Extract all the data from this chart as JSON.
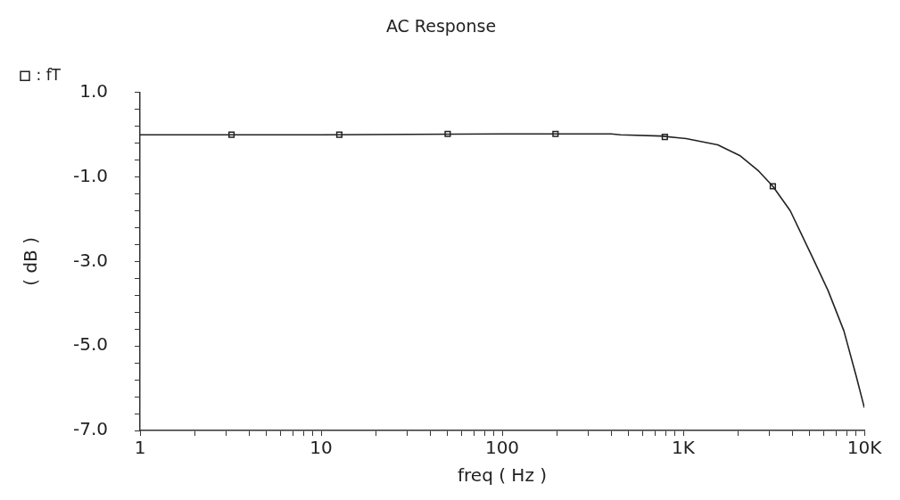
{
  "chart_data": {
    "type": "line",
    "title": "AC Response",
    "xlabel": "freq ( Hz )",
    "ylabel": "( dB )",
    "log": "x",
    "xlim": [
      1,
      10000
    ],
    "ylim": [
      -7,
      1
    ],
    "xticks": [
      1,
      {
        "value": 2,
        "label": null
      },
      {
        "value": 3,
        "label": null
      },
      {
        "value": 4,
        "label": null
      },
      {
        "value": 5,
        "label": null
      },
      {
        "value": 6,
        "label": null
      },
      {
        "value": 7,
        "label": null
      },
      {
        "value": 8,
        "label": null
      },
      {
        "value": 9,
        "label": null
      },
      10,
      {
        "value": 20,
        "label": null
      },
      {
        "value": 30,
        "label": null
      },
      {
        "value": 40,
        "label": null
      },
      {
        "value": 50,
        "label": null
      },
      {
        "value": 60,
        "label": null
      },
      {
        "value": 70,
        "label": null
      },
      {
        "value": 80,
        "label": null
      },
      {
        "value": 90,
        "label": null
      },
      100,
      {
        "value": 200,
        "label": null
      },
      {
        "value": 300,
        "label": null
      },
      {
        "value": 400,
        "label": null
      },
      {
        "value": 500,
        "label": null
      },
      {
        "value": 600,
        "label": null
      },
      {
        "value": 700,
        "label": null
      },
      {
        "value": 800,
        "label": null
      },
      {
        "value": 900,
        "label": null
      },
      {
        "value": 1000,
        "label": "1K"
      },
      {
        "value": 2000,
        "label": null
      },
      {
        "value": 3000,
        "label": null
      },
      {
        "value": 4000,
        "label": null
      },
      {
        "value": 5000,
        "label": null
      },
      {
        "value": 6000,
        "label": null
      },
      {
        "value": 7000,
        "label": null
      },
      {
        "value": 8000,
        "label": null
      },
      {
        "value": 9000,
        "label": null
      },
      {
        "value": 10000,
        "label": "10K"
      }
    ],
    "yticks": [
      {
        "value": 1,
        "label": "1.0"
      },
      {
        "value": 0.6,
        "label": null
      },
      {
        "value": 0.2,
        "label": null
      },
      {
        "value": -0.2,
        "label": null
      },
      {
        "value": -0.6,
        "label": null
      },
      {
        "value": -1,
        "label": "-1.0"
      },
      {
        "value": -1.4,
        "label": null
      },
      {
        "value": -1.8,
        "label": null
      },
      {
        "value": -2.2,
        "label": null
      },
      {
        "value": -2.6,
        "label": null
      },
      {
        "value": -3,
        "label": "-3.0"
      },
      {
        "value": -3.4,
        "label": null
      },
      {
        "value": -3.8,
        "label": null
      },
      {
        "value": -4.2,
        "label": null
      },
      {
        "value": -4.6,
        "label": null
      },
      {
        "value": -5,
        "label": "-5.0"
      },
      {
        "value": -5.4,
        "label": null
      },
      {
        "value": -5.8,
        "label": null
      },
      {
        "value": -6.2,
        "label": null
      },
      {
        "value": -6.6,
        "label": null
      },
      {
        "value": -7,
        "label": "-7.0"
      }
    ],
    "grid": false,
    "legend": "top left",
    "series": [
      {
        "name": ": fT",
        "color": "#222222",
        "marker": "none",
        "x": [
          1,
          10,
          100,
          400,
          450,
          753,
          1038,
          1550,
          2050,
          2610,
          3125,
          3900,
          5170,
          6310,
          7710,
          9040,
          10000
        ],
        "values": [
          0,
          0,
          0.02,
          0.02,
          0,
          -0.03,
          -0.09,
          -0.24,
          -0.49,
          -0.86,
          -1.22,
          -1.8,
          -2.9,
          -3.69,
          -4.64,
          -5.73,
          -6.46
        ]
      },
      {
        "type": "scatter",
        "color": "#222222",
        "marker": "square",
        "x": [
          3.2,
          12.6,
          50,
          197,
          791,
          3125
        ],
        "values": [
          0,
          0,
          0.02,
          0.02,
          -0.05,
          -1.22
        ]
      }
    ]
  }
}
